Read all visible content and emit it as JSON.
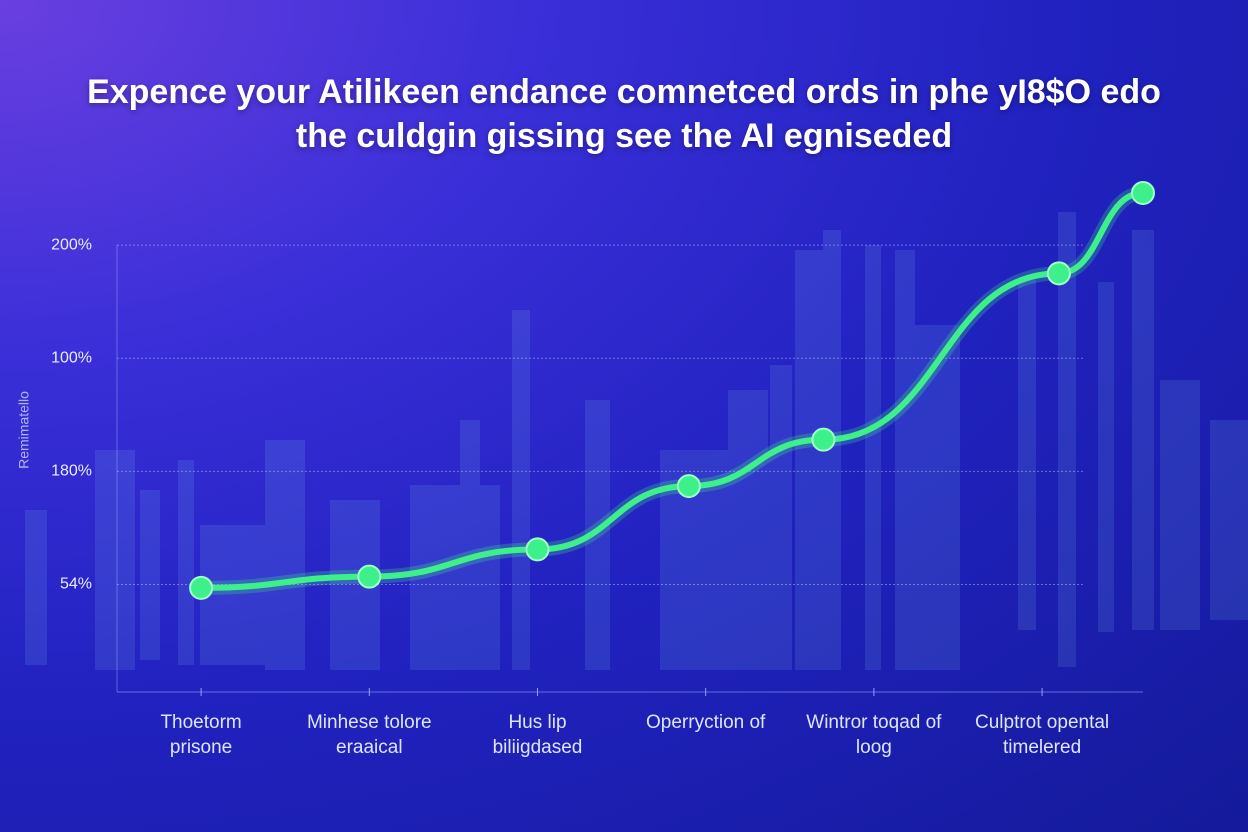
{
  "chart_data": {
    "type": "line",
    "title": "Expence your Atilikeen endance comnetced ords in phe yI8$O edo\nthe culdgin gissing see the AI egniseded",
    "y_label": "Remimatello",
    "ycategories": [
      "54%",
      "180%",
      "100%",
      "200%"
    ],
    "xticks": [
      {
        "value": 0,
        "label": "Thoetorm\nprisone"
      },
      {
        "value": 1,
        "label": "Minhese tolore\neraaical"
      },
      {
        "value": 2,
        "label": "Hus lip\nbiliigdased"
      },
      {
        "value": 3,
        "label": "Operryction of"
      },
      {
        "value": 4,
        "label": "Wintror toqad of\nloog"
      },
      {
        "value": 5,
        "label": "Culptrot opental\ntimelered"
      }
    ],
    "xlim": [
      -0.5,
      5.6
    ],
    "ylim": [
      -0.95,
      3.5
    ],
    "x": [
      0,
      1,
      2,
      2.9,
      3.7,
      5.1,
      5.6
    ],
    "values": [
      -0.03,
      0.07,
      0.31,
      0.87,
      1.28,
      2.75,
      3.46
    ],
    "color": "#3ef08a",
    "grid": true
  }
}
